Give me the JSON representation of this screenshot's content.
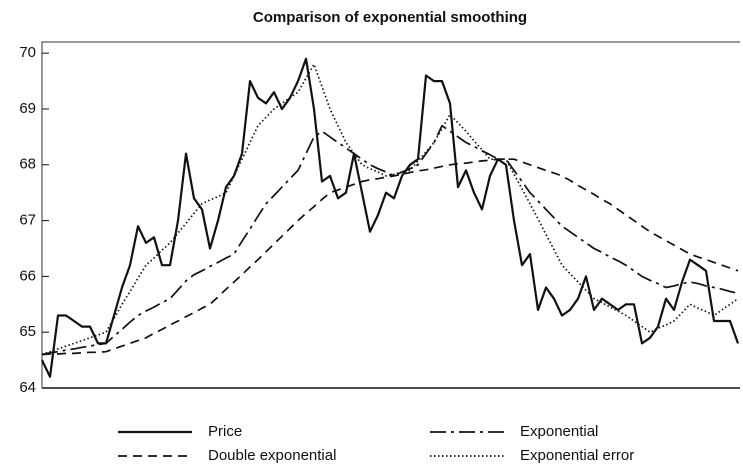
{
  "chart_data": {
    "type": "line",
    "title": "Comparison of exponential smoothing",
    "categories": [
      null,
      null,
      null,
      null,
      null,
      null,
      null,
      null,
      null,
      null,
      null,
      null,
      null,
      null,
      null,
      null,
      null,
      null,
      null,
      null,
      null,
      null,
      null,
      null,
      null,
      null,
      null,
      null,
      null,
      null,
      null,
      null,
      null,
      null,
      null,
      null,
      null,
      null,
      null,
      null,
      null,
      null,
      null,
      null,
      null,
      null,
      null,
      null,
      null,
      null,
      null,
      null,
      null,
      null,
      null,
      null,
      null,
      null,
      null,
      null,
      null,
      null,
      null,
      null,
      null,
      null,
      null,
      null,
      null,
      null,
      null,
      null,
      null,
      null,
      null,
      null,
      null,
      null,
      null,
      null,
      null,
      null,
      null,
      null,
      null,
      null,
      null,
      null
    ],
    "ylim": [
      64,
      70.2
    ],
    "yticks": [
      64,
      65,
      66,
      67,
      68,
      69,
      70
    ],
    "series": [
      {
        "name": "Price",
        "color": "#111111",
        "dash": "solid",
        "values": [
          64.5,
          64.2,
          65.3,
          65.3,
          65.2,
          65.1,
          65.1,
          64.8,
          64.8,
          65.3,
          65.8,
          66.2,
          66.9,
          66.6,
          66.7,
          66.2,
          66.2,
          67.0,
          68.2,
          67.4,
          67.2,
          66.5,
          67.0,
          67.6,
          67.8,
          68.2,
          69.5,
          69.2,
          69.1,
          69.3,
          69.0,
          69.2,
          69.5,
          69.9,
          69.0,
          67.7,
          67.8,
          67.4,
          67.5,
          68.2,
          67.5,
          66.8,
          67.1,
          67.5,
          67.4,
          67.8,
          68.0,
          68.1,
          69.6,
          69.5,
          69.5,
          69.1,
          67.6,
          67.9,
          67.5,
          67.2,
          67.8,
          68.1,
          68.0,
          67.0,
          66.2,
          66.4,
          65.4,
          65.8,
          65.6,
          65.3,
          65.4,
          65.6,
          66.0,
          65.4,
          65.6,
          65.5,
          65.4,
          65.5,
          65.5,
          64.8,
          64.9,
          65.1,
          65.6,
          65.4,
          65.9,
          66.3,
          66.2,
          66.1,
          65.2,
          65.2,
          65.2,
          64.8
        ]
      },
      {
        "name": "Exponential",
        "color": "#111111",
        "dash": "dashdot",
        "values": [
          64.6,
          64.63,
          64.65,
          64.68,
          64.7,
          64.73,
          64.75,
          64.78,
          64.8,
          64.93,
          65.05,
          65.18,
          65.3,
          65.38,
          65.45,
          65.53,
          65.6,
          65.76,
          65.92,
          66.03,
          66.1,
          66.18,
          66.25,
          66.33,
          66.4,
          66.63,
          66.85,
          67.08,
          67.3,
          67.45,
          67.6,
          67.75,
          67.9,
          68.2,
          68.5,
          68.6,
          68.5,
          68.4,
          68.3,
          68.2,
          68.1,
          68.0,
          67.93,
          67.87,
          67.8,
          67.87,
          67.93,
          68.0,
          68.2,
          68.4,
          68.7,
          68.6,
          68.5,
          68.4,
          68.33,
          68.25,
          68.18,
          68.1,
          68.1,
          67.9,
          67.7,
          67.5,
          67.35,
          67.2,
          67.05,
          66.9,
          66.8,
          66.7,
          66.6,
          66.5,
          66.43,
          66.35,
          66.28,
          66.2,
          66.1,
          66.0,
          65.93,
          65.87,
          65.8,
          65.83,
          65.87,
          65.9,
          65.87,
          65.83,
          65.8,
          65.77,
          65.73,
          65.7
        ]
      },
      {
        "name": "Double exponential",
        "color": "#111111",
        "dash": "dashed",
        "values": [
          64.6,
          64.61,
          64.61,
          64.62,
          64.62,
          64.63,
          64.64,
          64.64,
          64.65,
          64.7,
          64.75,
          64.8,
          64.85,
          64.9,
          64.98,
          65.05,
          65.13,
          65.2,
          65.28,
          65.35,
          65.43,
          65.5,
          65.63,
          65.77,
          65.9,
          66.03,
          66.17,
          66.3,
          66.44,
          66.58,
          66.72,
          66.86,
          67.0,
          67.13,
          67.25,
          67.38,
          67.5,
          67.55,
          67.6,
          67.65,
          67.7,
          67.73,
          67.75,
          67.78,
          67.8,
          67.83,
          67.86,
          67.89,
          67.91,
          67.94,
          67.97,
          68.0,
          68.02,
          68.03,
          68.05,
          68.07,
          68.08,
          68.1,
          68.1,
          68.1,
          68.05,
          68.0,
          67.95,
          67.9,
          67.85,
          67.8,
          67.72,
          67.63,
          67.55,
          67.47,
          67.38,
          67.3,
          67.2,
          67.1,
          67.0,
          66.9,
          66.8,
          66.72,
          66.64,
          66.56,
          66.48,
          66.4,
          66.35,
          66.3,
          66.25,
          66.2,
          66.15,
          66.1
        ]
      },
      {
        "name": "Exponential error",
        "color": "#111111",
        "dash": "dotted",
        "values": [
          64.6,
          64.65,
          64.7,
          64.75,
          64.8,
          64.85,
          64.9,
          64.95,
          65.0,
          65.25,
          65.5,
          65.73,
          65.97,
          66.2,
          66.33,
          66.47,
          66.6,
          66.78,
          66.95,
          67.13,
          67.3,
          67.37,
          67.43,
          67.5,
          67.8,
          68.1,
          68.4,
          68.7,
          68.85,
          69.0,
          69.1,
          69.2,
          69.3,
          69.55,
          69.8,
          69.4,
          69.0,
          68.7,
          68.4,
          68.2,
          68.0,
          67.93,
          67.87,
          67.8,
          67.83,
          67.87,
          67.9,
          68.07,
          68.23,
          68.4,
          68.65,
          68.9,
          68.75,
          68.6,
          68.43,
          68.27,
          68.1,
          68.1,
          68.1,
          67.83,
          67.57,
          67.3,
          67.03,
          66.75,
          66.48,
          66.2,
          66.05,
          65.9,
          65.75,
          65.6,
          65.53,
          65.45,
          65.38,
          65.3,
          65.2,
          65.1,
          65.0,
          65.07,
          65.13,
          65.2,
          65.35,
          65.5,
          65.43,
          65.37,
          65.3,
          65.4,
          65.5,
          65.6
        ]
      }
    ]
  }
}
